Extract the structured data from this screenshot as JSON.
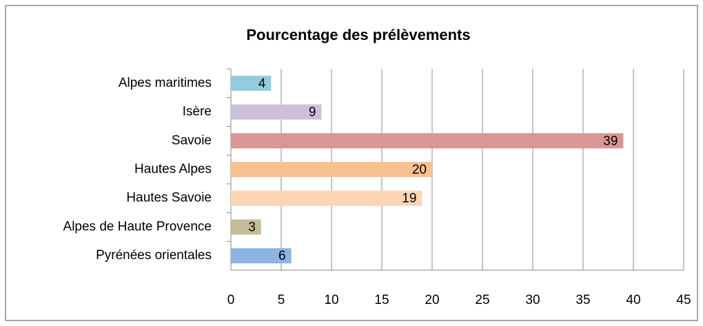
{
  "chart_data": {
    "type": "bar",
    "orientation": "horizontal",
    "title": "Pourcentage des prélèvements",
    "categories": [
      "Alpes maritimes",
      "Isère",
      "Savoie",
      "Hautes Alpes",
      "Hautes Savoie",
      "Alpes de Haute Provence",
      "Pyrénées orientales"
    ],
    "values": [
      4,
      9,
      39,
      20,
      19,
      3,
      6
    ],
    "colors": [
      "#93cddd",
      "#ccc1da",
      "#d99694",
      "#fac090",
      "#fcd5b5",
      "#c4bd97",
      "#8eb4e3"
    ],
    "xlim": [
      0,
      45
    ],
    "xticks": [
      0,
      5,
      10,
      15,
      20,
      25,
      30,
      35,
      40,
      45
    ],
    "grid": true,
    "data_labels": true
  }
}
